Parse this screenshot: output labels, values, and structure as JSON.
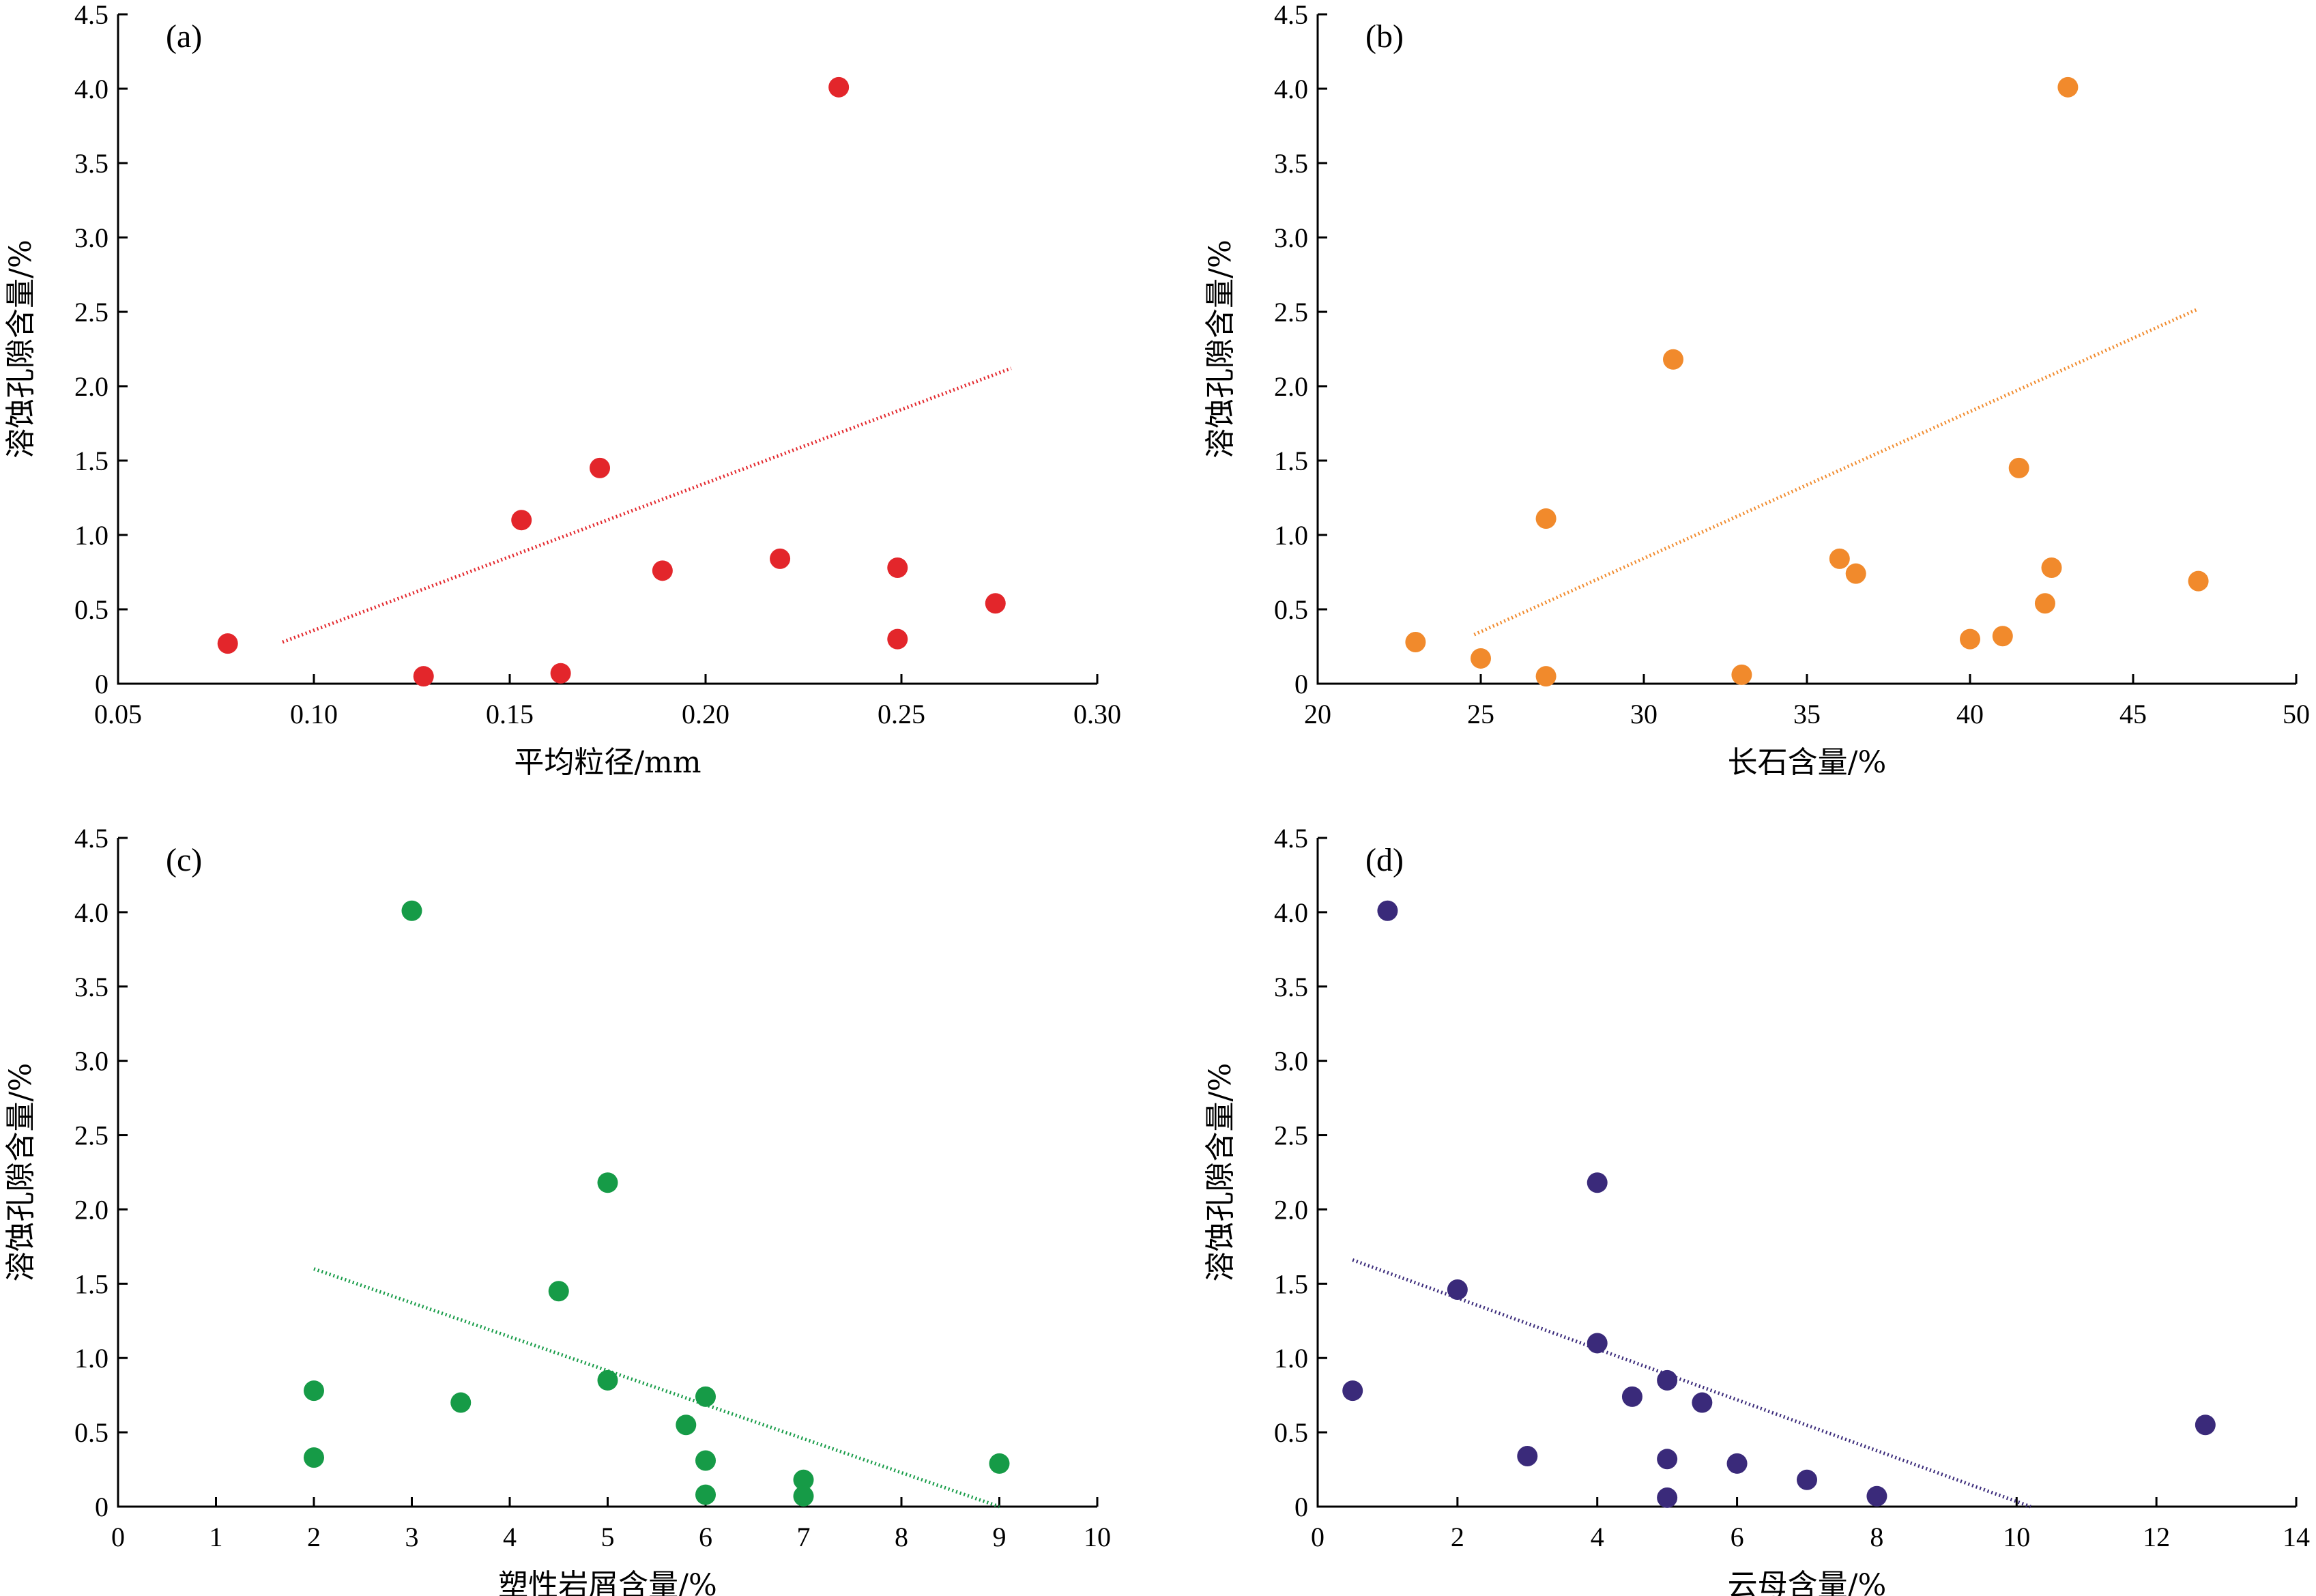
{
  "figure": {
    "panels": [
      {
        "id": "a",
        "label": "(a)",
        "color": "#e3262b",
        "xlabel": "平均粒径/mm",
        "ylabel": "溶蚀孔隙含量/%",
        "xticks": [
          0.05,
          0.1,
          0.15,
          0.2,
          0.25,
          0.3
        ],
        "xtick_labels": [
          "0.05",
          "0.10",
          "0.15",
          "0.20",
          "0.25",
          "0.30"
        ]
      },
      {
        "id": "b",
        "label": "(b)",
        "color": "#f18a2c",
        "xlabel": "长石含量/%",
        "ylabel": "溶蚀孔隙含量/%",
        "xticks": [
          20,
          25,
          30,
          35,
          40,
          45,
          50
        ],
        "xtick_labels": [
          "20",
          "25",
          "30",
          "35",
          "40",
          "45",
          "50"
        ]
      },
      {
        "id": "c",
        "label": "(c)",
        "color": "#169b47",
        "xlabel": "塑性岩屑含量/%",
        "ylabel": "溶蚀孔隙含量/%",
        "xticks": [
          0,
          1,
          2,
          3,
          4,
          5,
          6,
          7,
          8,
          9,
          10
        ],
        "xtick_labels": [
          "0",
          "1",
          "2",
          "3",
          "4",
          "5",
          "6",
          "7",
          "8",
          "9",
          "10"
        ]
      },
      {
        "id": "d",
        "label": "(d)",
        "color": "#3a2a7a",
        "xlabel": "云母含量/%",
        "ylabel": "溶蚀孔隙含量/%",
        "xticks": [
          0,
          2,
          4,
          6,
          8,
          10,
          12,
          14
        ],
        "xtick_labels": [
          "0",
          "2",
          "4",
          "6",
          "8",
          "10",
          "12",
          "14"
        ]
      }
    ],
    "ytick_labels": [
      "0",
      "0.5",
      "1.0",
      "1.5",
      "2.0",
      "2.5",
      "3.0",
      "3.5",
      "4.0",
      "4.5"
    ]
  },
  "chart_data": [
    {
      "type": "scatter",
      "xlabel": "平均粒径/mm",
      "ylabel": "溶蚀孔隙含量/%",
      "xlim": [
        0.05,
        0.3
      ],
      "ylim": [
        0,
        4.5
      ],
      "grid": false,
      "points": [
        {
          "x": 0.078,
          "y": 0.27
        },
        {
          "x": 0.128,
          "y": 0.05
        },
        {
          "x": 0.153,
          "y": 1.1
        },
        {
          "x": 0.163,
          "y": 0.07
        },
        {
          "x": 0.173,
          "y": 1.45
        },
        {
          "x": 0.189,
          "y": 0.76
        },
        {
          "x": 0.219,
          "y": 0.84
        },
        {
          "x": 0.234,
          "y": 4.01
        },
        {
          "x": 0.249,
          "y": 0.78
        },
        {
          "x": 0.249,
          "y": 0.3
        },
        {
          "x": 0.274,
          "y": 0.54
        }
      ],
      "trendline": {
        "style": "dotted",
        "x": [
          0.092,
          0.278
        ],
        "y": [
          0.28,
          2.12
        ]
      }
    },
    {
      "type": "scatter",
      "xlabel": "长石含量/%",
      "ylabel": "溶蚀孔隙含量/%",
      "xlim": [
        20,
        50
      ],
      "ylim": [
        0,
        4.5
      ],
      "grid": false,
      "points": [
        {
          "x": 23,
          "y": 0.28
        },
        {
          "x": 25,
          "y": 0.17
        },
        {
          "x": 27,
          "y": 1.11
        },
        {
          "x": 27,
          "y": 0.05
        },
        {
          "x": 30.9,
          "y": 2.18
        },
        {
          "x": 33,
          "y": 0.06
        },
        {
          "x": 36,
          "y": 0.84
        },
        {
          "x": 36.5,
          "y": 0.74
        },
        {
          "x": 40,
          "y": 0.3
        },
        {
          "x": 41,
          "y": 0.32
        },
        {
          "x": 41.5,
          "y": 1.45
        },
        {
          "x": 42.3,
          "y": 0.54
        },
        {
          "x": 42.5,
          "y": 0.78
        },
        {
          "x": 43,
          "y": 4.01
        },
        {
          "x": 47,
          "y": 0.69
        }
      ],
      "trendline": {
        "style": "dotted",
        "x": [
          24.8,
          47.0
        ],
        "y": [
          0.33,
          2.52
        ]
      }
    },
    {
      "type": "scatter",
      "xlabel": "塑性岩屑含量/%",
      "ylabel": "溶蚀孔隙含量/%",
      "xlim": [
        0,
        10
      ],
      "ylim": [
        0,
        4.5
      ],
      "grid": false,
      "points": [
        {
          "x": 2,
          "y": 0.78
        },
        {
          "x": 2,
          "y": 0.33
        },
        {
          "x": 3,
          "y": 4.01
        },
        {
          "x": 3.5,
          "y": 0.7
        },
        {
          "x": 4.5,
          "y": 1.45
        },
        {
          "x": 5,
          "y": 2.18
        },
        {
          "x": 5,
          "y": 0.85
        },
        {
          "x": 5.8,
          "y": 0.55
        },
        {
          "x": 6,
          "y": 0.74
        },
        {
          "x": 6,
          "y": 0.31
        },
        {
          "x": 6,
          "y": 0.08
        },
        {
          "x": 7,
          "y": 0.18
        },
        {
          "x": 7,
          "y": 0.07
        },
        {
          "x": 9,
          "y": 0.29
        }
      ],
      "trendline": {
        "style": "dotted",
        "x": [
          2.0,
          9.0
        ],
        "y": [
          1.6,
          0.0
        ]
      }
    },
    {
      "type": "scatter",
      "xlabel": "云母含量/%",
      "ylabel": "溶蚀孔隙含量/%",
      "xlim": [
        0,
        14
      ],
      "ylim": [
        0,
        4.5
      ],
      "grid": false,
      "points": [
        {
          "x": 0.5,
          "y": 0.78
        },
        {
          "x": 1,
          "y": 4.01
        },
        {
          "x": 2,
          "y": 1.46
        },
        {
          "x": 3,
          "y": 0.34
        },
        {
          "x": 4,
          "y": 2.18
        },
        {
          "x": 4,
          "y": 1.1
        },
        {
          "x": 4.5,
          "y": 0.74
        },
        {
          "x": 5,
          "y": 0.85
        },
        {
          "x": 5,
          "y": 0.32
        },
        {
          "x": 5,
          "y": 0.06
        },
        {
          "x": 5.5,
          "y": 0.7
        },
        {
          "x": 6,
          "y": 0.29
        },
        {
          "x": 7,
          "y": 0.18
        },
        {
          "x": 8,
          "y": 0.07
        },
        {
          "x": 12.7,
          "y": 0.55
        }
      ],
      "trendline": {
        "style": "dotted",
        "x": [
          0.5,
          10.2
        ],
        "y": [
          1.66,
          0.0
        ]
      }
    }
  ]
}
